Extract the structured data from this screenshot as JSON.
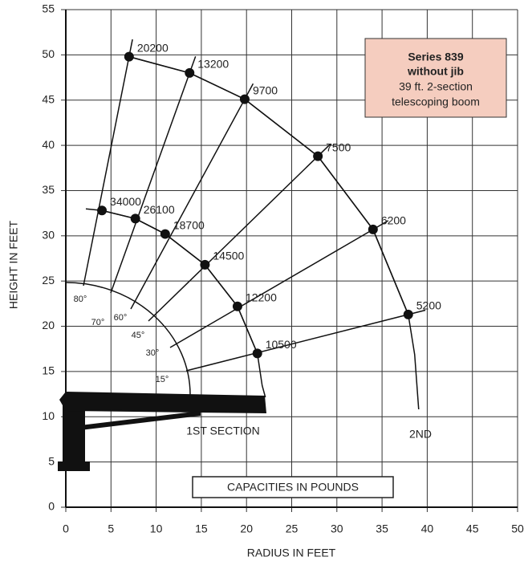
{
  "chart_data": {
    "type": "scatter",
    "title": "Series 839",
    "subtitle": "without jib",
    "description": [
      "39 ft. 2-section",
      "telescoping boom"
    ],
    "note": "CAPACITIES IN POUNDS",
    "xlabel": "RADIUS IN FEET",
    "ylabel": "HEIGHT IN FEET",
    "xlim": [
      0,
      50
    ],
    "ylim": [
      0,
      55
    ],
    "xticks": [
      0,
      5,
      10,
      15,
      20,
      25,
      30,
      35,
      40,
      45,
      50
    ],
    "yticks": [
      0,
      5,
      10,
      15,
      20,
      25,
      30,
      35,
      40,
      45,
      50,
      55
    ],
    "grid": true,
    "angles": [
      {
        "value": 80,
        "label": "80°"
      },
      {
        "value": 70,
        "label": "70°"
      },
      {
        "value": 60,
        "label": "60°"
      },
      {
        "value": 45,
        "label": "45°"
      },
      {
        "value": 30,
        "label": "30°"
      },
      {
        "value": 15,
        "label": "15°"
      }
    ],
    "series": [
      {
        "name": "1ST SECTION",
        "color": "#111111",
        "x": [
          4,
          7.7,
          11,
          15.4,
          19,
          21.2
        ],
        "values": [
          32.8,
          31.9,
          30.2,
          26.8,
          22.2,
          17
        ],
        "capacities": [
          34000,
          26100,
          18700,
          14500,
          12200,
          10500
        ]
      },
      {
        "name": "2ND",
        "color": "#111111",
        "x": [
          7,
          13.7,
          19.8,
          27.9,
          34,
          37.9
        ],
        "values": [
          49.8,
          48,
          45.1,
          38.8,
          30.7,
          21.3
        ],
        "capacities": [
          20200,
          13200,
          9700,
          7500,
          6200,
          5200
        ]
      }
    ]
  }
}
